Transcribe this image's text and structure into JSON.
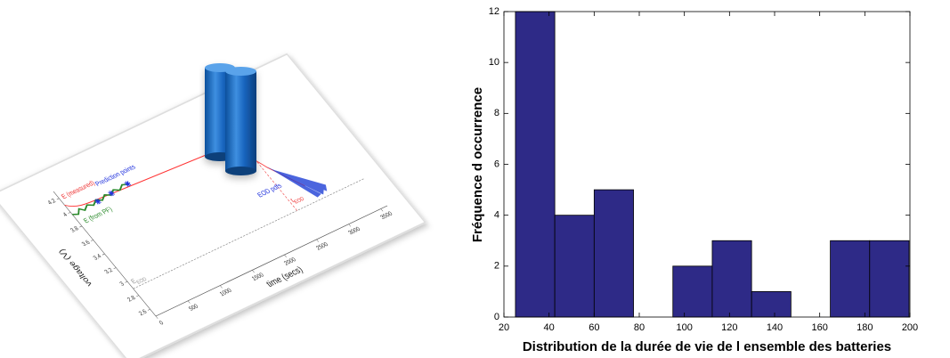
{
  "chart_data": [
    {
      "type": "illustration",
      "x_label": "time (secs)",
      "y_label": "voltage (V)",
      "xlim": [
        0,
        3600
      ],
      "xticks": [
        0,
        500,
        1000,
        1500,
        2000,
        2500,
        3000,
        3500
      ],
      "ylim": [
        2.5,
        4.3
      ],
      "yticks": [
        2.6,
        2.8,
        3,
        3.2,
        3.4,
        3.6,
        3.8,
        4,
        4.2
      ],
      "annotations": {
        "measured": "E (measured)",
        "prediction": "Prediction points",
        "filtered": "E (from PF)",
        "pdfs": "EOD pdfs",
        "t_eod": {
          "symbol": "t",
          "subscript": "EOD"
        },
        "e_eod": {
          "symbol": "E",
          "subscript": "EOD"
        }
      }
    },
    {
      "type": "histogram",
      "x_label": "Distribution de la durée de vie de l ensemble des batteries",
      "y_label": "Fréquence d occurrence",
      "bins": [
        25.1,
        42.55,
        60,
        77.45,
        94.9,
        112.35,
        129.8,
        147.25,
        164.7,
        182.15,
        199.6
      ],
      "values": [
        12,
        4,
        5,
        0,
        2,
        3,
        1,
        0,
        3,
        3
      ],
      "color": "#2e2a87",
      "xlim": [
        20,
        200
      ],
      "xticks": [
        20,
        40,
        60,
        80,
        100,
        120,
        140,
        160,
        180,
        200
      ],
      "ylim": [
        0,
        12
      ],
      "yticks": [
        0,
        2,
        4,
        6,
        8,
        10,
        12
      ]
    }
  ]
}
